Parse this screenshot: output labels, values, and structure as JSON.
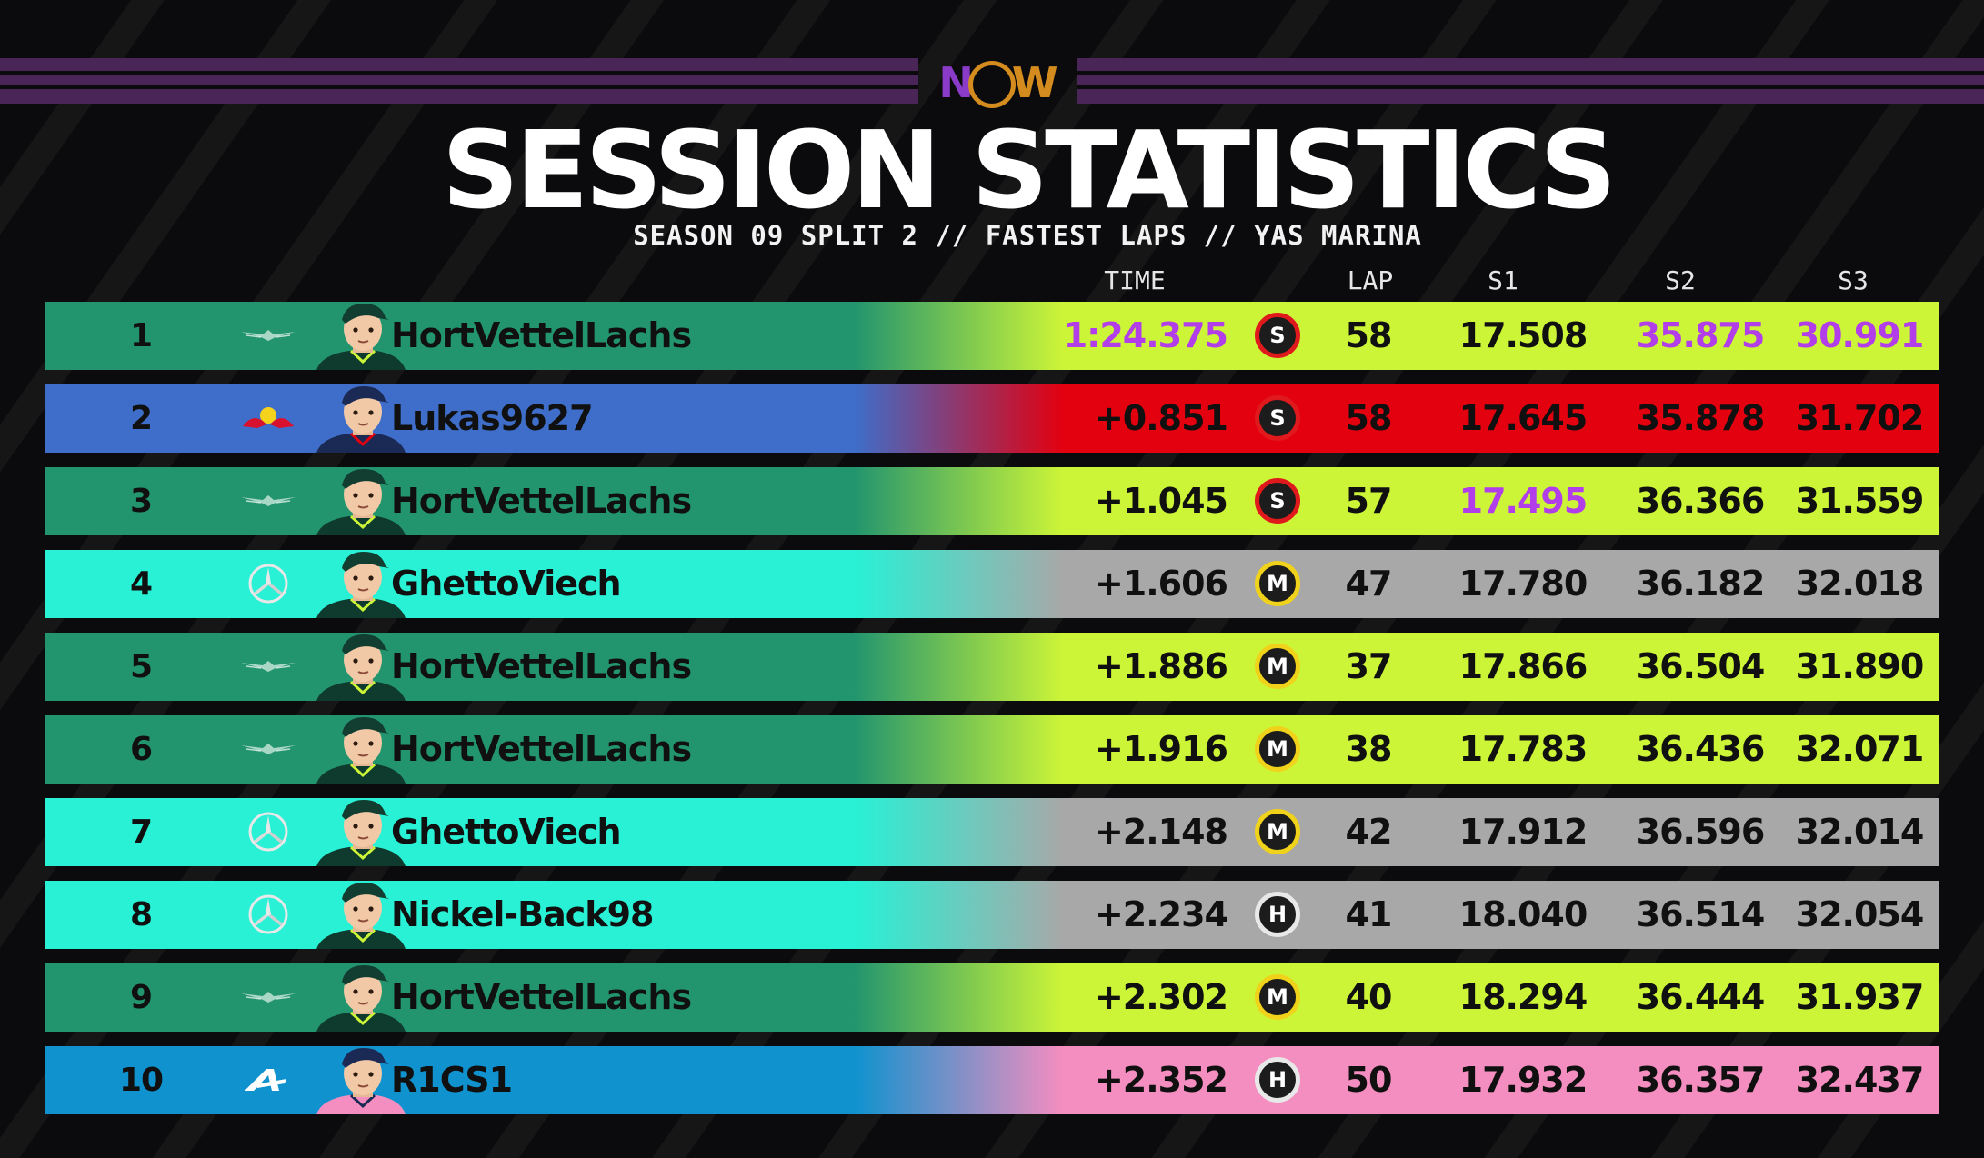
{
  "logo_text": "NOW",
  "title": "SESSION STATISTICS",
  "subtitle": "SEASON 09 SPLIT 2 // FASTEST LAPS // YAS MARINA",
  "headers": {
    "time": "TIME",
    "lap": "LAP",
    "s1": "S1",
    "s2": "S2",
    "s3": "S3"
  },
  "colors": {
    "aston_green": "#23956e",
    "lime": "#cdf537",
    "redbull_blue": "#3e6ec9",
    "ferrari_red": "#e3000f",
    "mercedes_teal": "#28f1d5",
    "grey": "#a8a8a8",
    "alpine_blue": "#0f92ce",
    "pink": "#f58ec0",
    "purple": "#b13ee8",
    "tyre_soft": "#e0191c",
    "tyre_medium": "#f0d21a",
    "tyre_hard": "#e8e8e8"
  },
  "rows": [
    {
      "pos": "1",
      "team": "aston-martin",
      "name": "HortVettelLachs",
      "time": "1:24.375",
      "tyre": "S",
      "lap": "58",
      "s1": "17.508",
      "s2": "35.875",
      "s3": "30.991",
      "time_best": true,
      "s1_best": false,
      "s2_best": true,
      "s3_best": true
    },
    {
      "pos": "2",
      "team": "red-bull",
      "name": "Lukas9627",
      "time": "+0.851",
      "tyre": "S",
      "lap": "58",
      "s1": "17.645",
      "s2": "35.878",
      "s3": "31.702",
      "time_best": false,
      "s1_best": false,
      "s2_best": false,
      "s3_best": false
    },
    {
      "pos": "3",
      "team": "aston-martin",
      "name": "HortVettelLachs",
      "time": "+1.045",
      "tyre": "S",
      "lap": "57",
      "s1": "17.495",
      "s2": "36.366",
      "s3": "31.559",
      "time_best": false,
      "s1_best": true,
      "s2_best": false,
      "s3_best": false
    },
    {
      "pos": "4",
      "team": "mercedes",
      "name": "GhettoViech",
      "time": "+1.606",
      "tyre": "M",
      "lap": "47",
      "s1": "17.780",
      "s2": "36.182",
      "s3": "32.018",
      "time_best": false,
      "s1_best": false,
      "s2_best": false,
      "s3_best": false
    },
    {
      "pos": "5",
      "team": "aston-martin",
      "name": "HortVettelLachs",
      "time": "+1.886",
      "tyre": "M",
      "lap": "37",
      "s1": "17.866",
      "s2": "36.504",
      "s3": "31.890",
      "time_best": false,
      "s1_best": false,
      "s2_best": false,
      "s3_best": false
    },
    {
      "pos": "6",
      "team": "aston-martin",
      "name": "HortVettelLachs",
      "time": "+1.916",
      "tyre": "M",
      "lap": "38",
      "s1": "17.783",
      "s2": "36.436",
      "s3": "32.071",
      "time_best": false,
      "s1_best": false,
      "s2_best": false,
      "s3_best": false
    },
    {
      "pos": "7",
      "team": "mercedes",
      "name": "GhettoViech",
      "time": "+2.148",
      "tyre": "M",
      "lap": "42",
      "s1": "17.912",
      "s2": "36.596",
      "s3": "32.014",
      "time_best": false,
      "s1_best": false,
      "s2_best": false,
      "s3_best": false
    },
    {
      "pos": "8",
      "team": "mercedes",
      "name": "Nickel-Back98",
      "time": "+2.234",
      "tyre": "H",
      "lap": "41",
      "s1": "18.040",
      "s2": "36.514",
      "s3": "32.054",
      "time_best": false,
      "s1_best": false,
      "s2_best": false,
      "s3_best": false
    },
    {
      "pos": "9",
      "team": "aston-martin",
      "name": "HortVettelLachs",
      "time": "+2.302",
      "tyre": "M",
      "lap": "40",
      "s1": "18.294",
      "s2": "36.444",
      "s3": "31.937",
      "time_best": false,
      "s1_best": false,
      "s2_best": false,
      "s3_best": false
    },
    {
      "pos": "10",
      "team": "alpine",
      "name": "R1CS1",
      "time": "+2.352",
      "tyre": "H",
      "lap": "50",
      "s1": "17.932",
      "s2": "36.357",
      "s3": "32.437",
      "time_best": false,
      "s1_best": false,
      "s2_best": false,
      "s3_best": false
    }
  ]
}
